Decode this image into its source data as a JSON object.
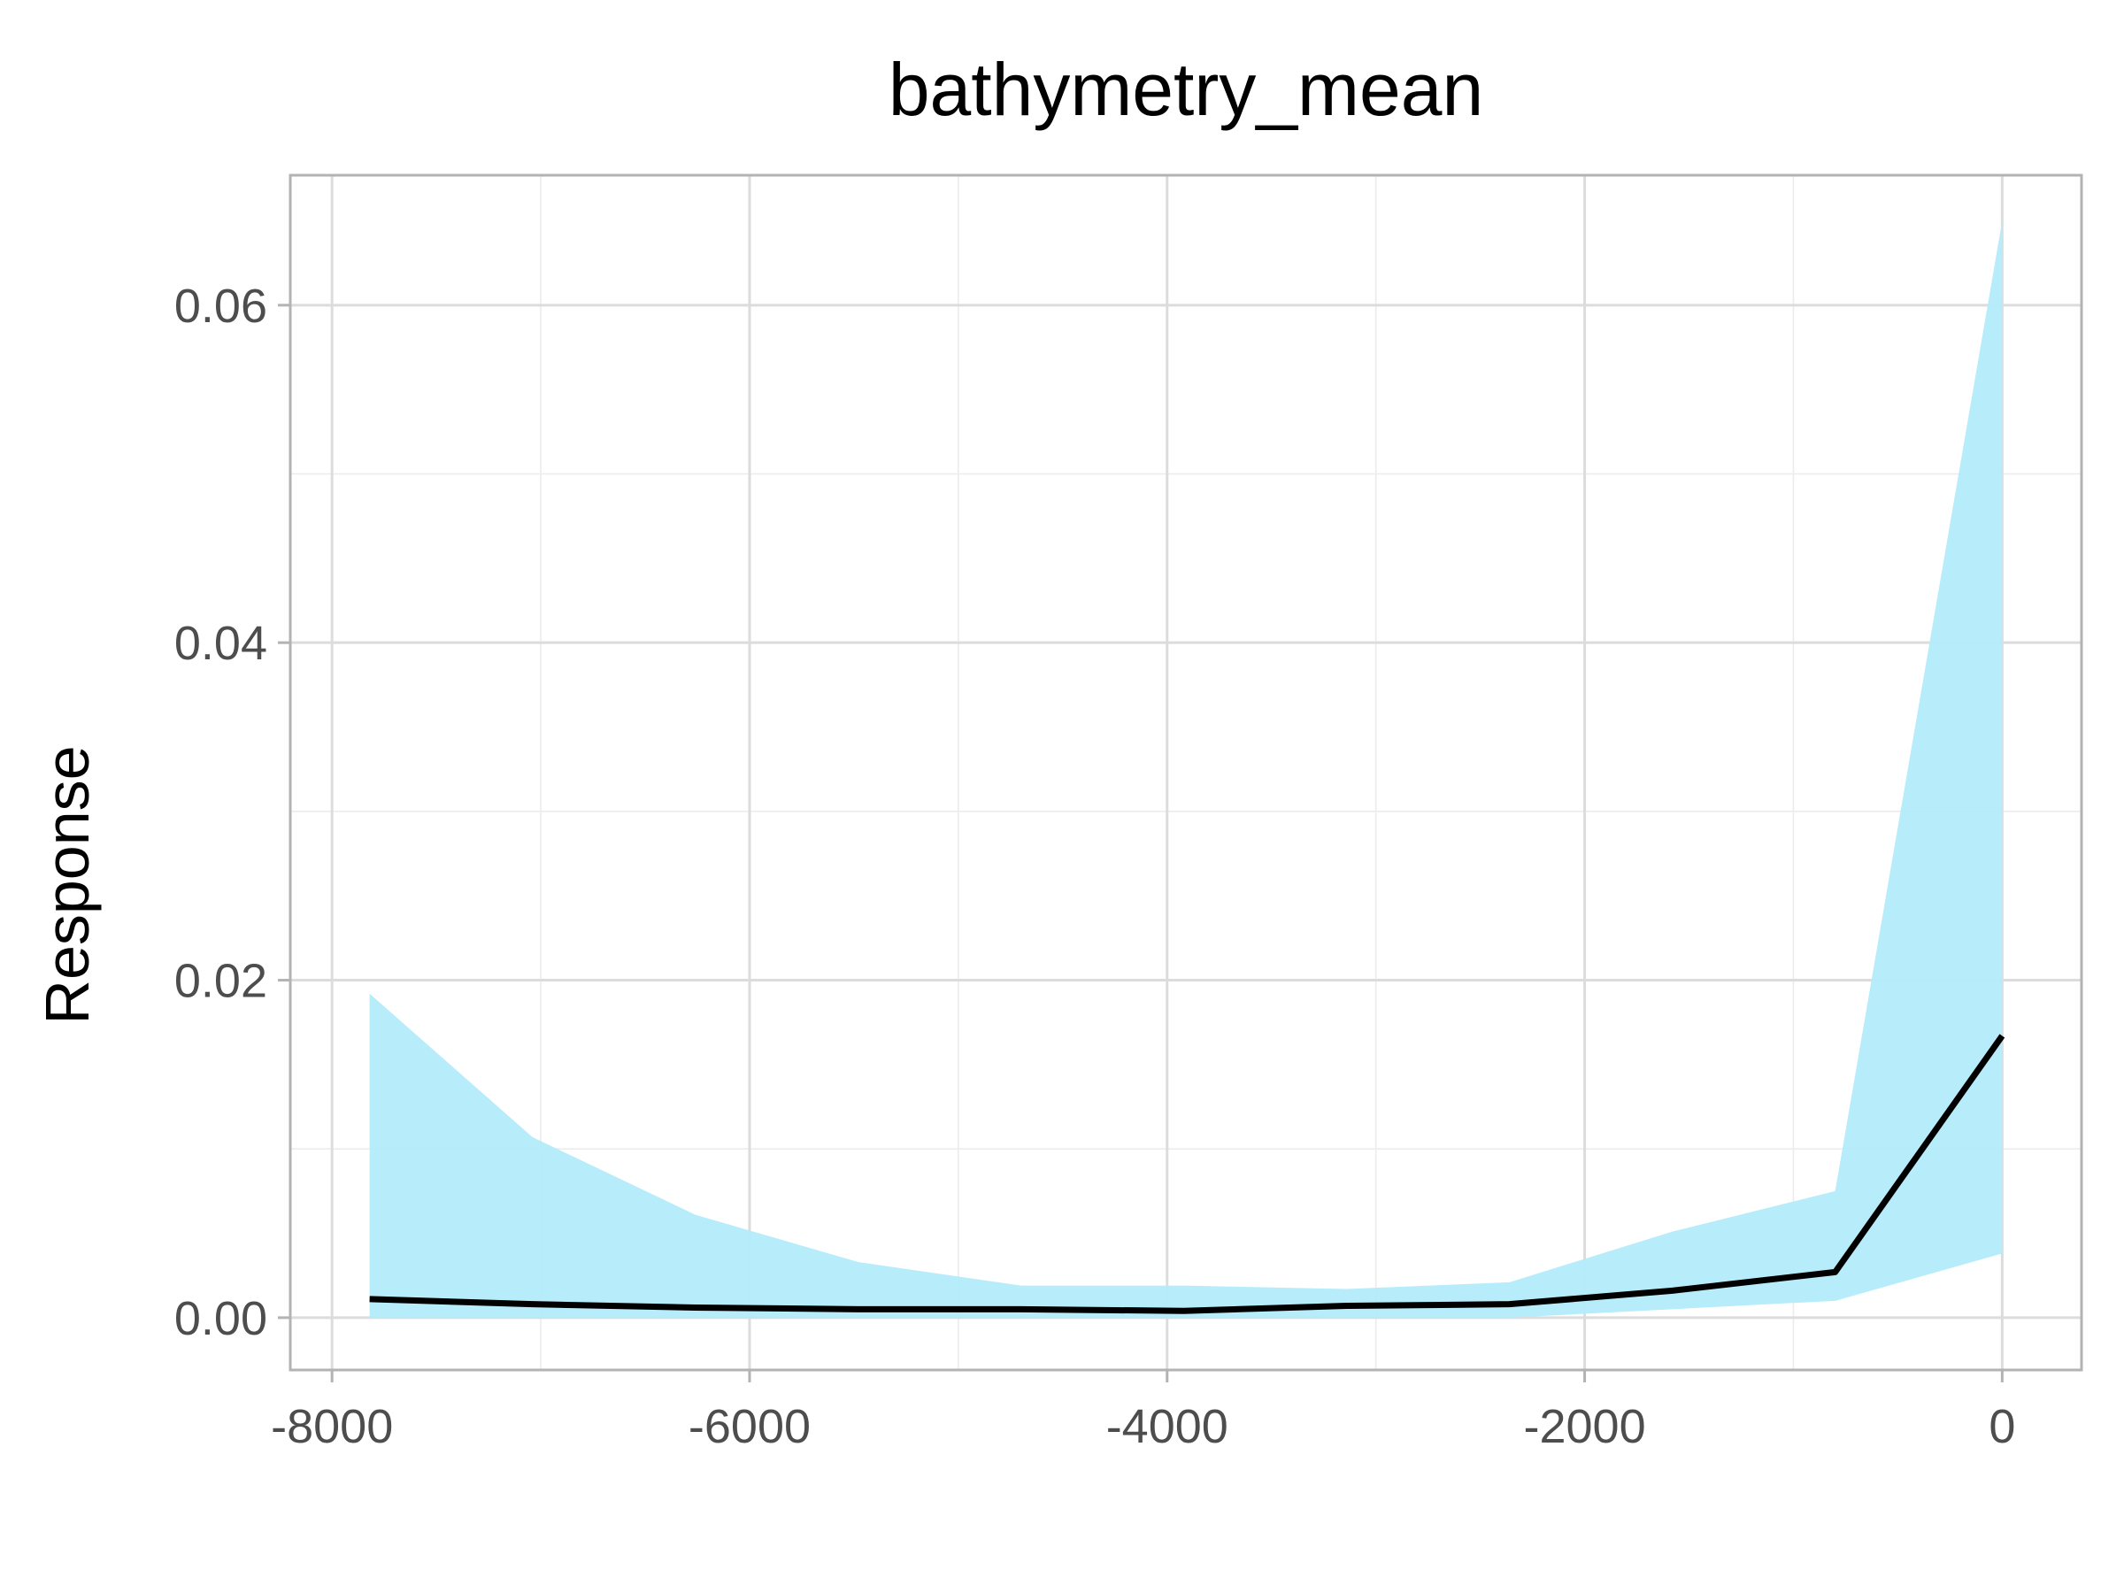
{
  "chart_data": {
    "type": "line",
    "title": "bathymetry_mean",
    "xlabel": "",
    "ylabel": "Response",
    "xlim": [
      -8200,
      380
    ],
    "ylim": [
      -0.0031,
      0.0677
    ],
    "x_ticks": [
      -8000,
      -6000,
      -4000,
      -2000,
      0
    ],
    "x_tick_labels": [
      "-8000",
      "-6000",
      "-4000",
      "-2000",
      "0"
    ],
    "y_ticks": [
      0,
      0.02,
      0.04,
      0.06
    ],
    "y_tick_labels": [
      "0.00",
      "0.02",
      "0.04",
      "0.06"
    ],
    "grid": true,
    "legend": "none",
    "series": [
      {
        "kind": "ribbon",
        "color": "#b3ebfb",
        "x": [
          -7820,
          -7040,
          -6260,
          -5480,
          -4700,
          -3920,
          -3140,
          -2360,
          -1580,
          -800,
          0
        ],
        "lower": [
          0.0,
          0.0,
          0.0,
          0.0,
          0.0,
          0.0,
          0.0,
          0.0,
          0.0005,
          0.001,
          0.0038
        ],
        "upper": [
          0.0192,
          0.0107,
          0.0061,
          0.0033,
          0.0019,
          0.0019,
          0.0017,
          0.0021,
          0.0051,
          0.0075,
          0.065
        ]
      },
      {
        "kind": "line",
        "color": "#000000",
        "x": [
          -7820,
          -7040,
          -6260,
          -5480,
          -4700,
          -3920,
          -3140,
          -2360,
          -1580,
          -800,
          0
        ],
        "y": [
          0.0011,
          0.0008,
          0.0006,
          0.0005,
          0.0005,
          0.0004,
          0.0007,
          0.0008,
          0.0016,
          0.0027,
          0.0167
        ]
      }
    ]
  }
}
